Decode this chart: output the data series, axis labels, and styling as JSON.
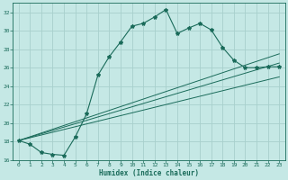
{
  "xlabel": "Humidex (Indice chaleur)",
  "bg_color": "#c5e8e5",
  "line_color": "#1a6b5a",
  "grid_color": "#a8d0cc",
  "xlim": [
    -0.5,
    23.5
  ],
  "ylim": [
    16,
    33
  ],
  "xticks": [
    0,
    1,
    2,
    3,
    4,
    5,
    6,
    7,
    8,
    9,
    10,
    11,
    12,
    13,
    14,
    15,
    16,
    17,
    18,
    19,
    20,
    21,
    22,
    23
  ],
  "yticks": [
    16,
    18,
    20,
    22,
    24,
    26,
    28,
    30,
    32
  ],
  "main_curve_x": [
    0,
    1,
    2,
    3,
    4,
    5,
    6,
    7,
    8,
    9,
    10,
    11,
    12,
    13,
    14,
    15,
    16,
    17,
    18,
    19,
    20,
    21,
    22,
    23
  ],
  "main_curve_y": [
    18.1,
    17.7,
    16.8,
    16.6,
    16.5,
    18.5,
    21.0,
    25.2,
    27.2,
    28.8,
    30.5,
    30.8,
    31.5,
    32.3,
    29.7,
    30.3,
    30.8,
    30.1,
    28.2,
    26.8,
    26.0,
    26.0,
    26.1,
    26.1
  ],
  "diag_lines": [
    {
      "x": [
        0,
        23
      ],
      "y": [
        18.1,
        25.0
      ]
    },
    {
      "x": [
        0,
        23
      ],
      "y": [
        18.1,
        26.5
      ]
    },
    {
      "x": [
        0,
        23
      ],
      "y": [
        18.1,
        27.5
      ]
    }
  ]
}
